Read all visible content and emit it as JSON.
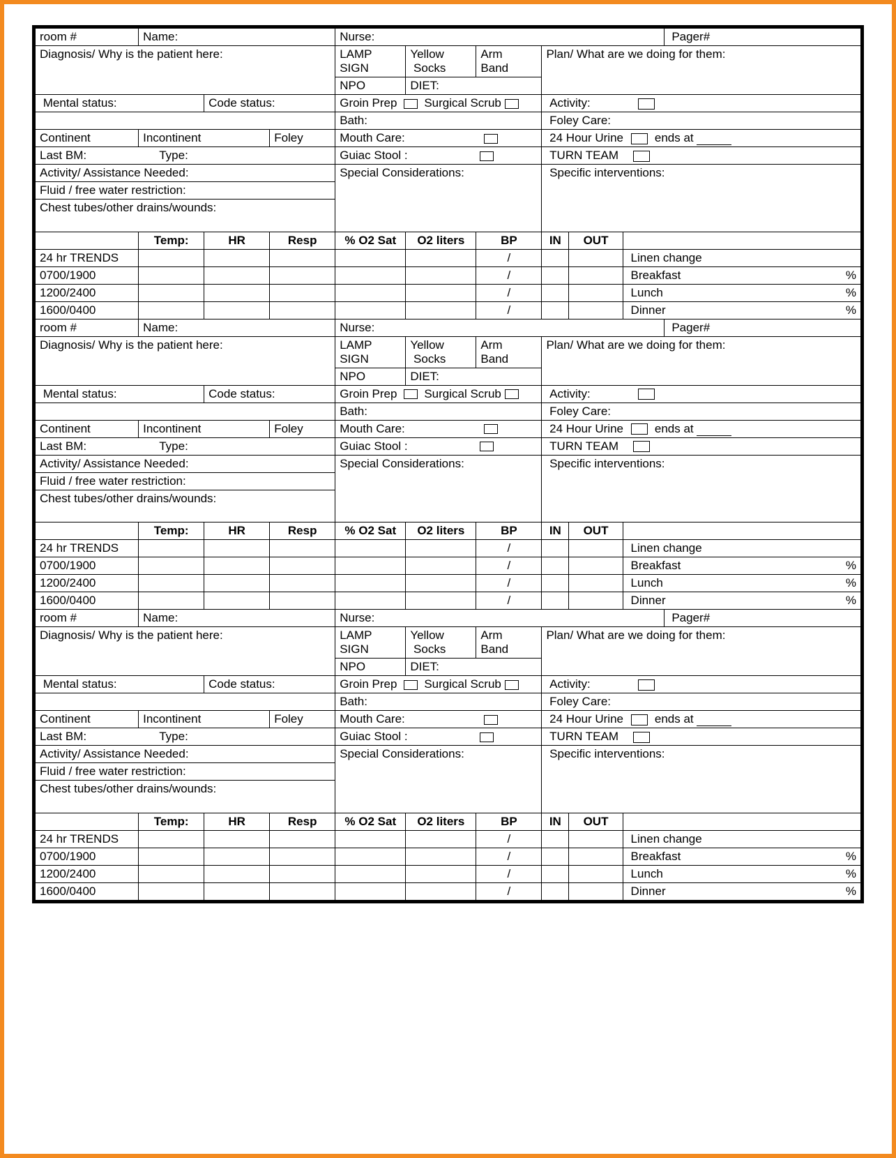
{
  "labels": {
    "room": "room #",
    "name": "Name:",
    "nurse": "Nurse:",
    "pager": "Pager#",
    "diagnosis": "Diagnosis/ Why is the patient here:",
    "lamp": "LAMP",
    "sign": "SIGN",
    "yellow": "Yellow",
    "socks": "Socks",
    "arm": "Arm",
    "band": "Band",
    "plan": "Plan/ What are we doing for them:",
    "npo": "NPO",
    "diet": "DIET:",
    "mental": "Mental status:",
    "code": "Code status:",
    "groin": "Groin Prep",
    "scrub": "Surgical Scrub",
    "activity": "Activity:",
    "bath": "Bath:",
    "foleycare": "Foley Care:",
    "continent": "Continent",
    "incontinent": "Incontinent",
    "foley": "Foley",
    "mouth": "Mouth Care:",
    "urine": "24 Hour Urine",
    "ends": "ends at",
    "lastbm": "Last BM:",
    "type": "Type:",
    "guiac": "Guiac Stool  :",
    "turn": "TURN TEAM",
    "assist": "Activity/ Assistance Needed:",
    "special": "Special Considerations:",
    "interventions": "Specific interventions:",
    "fluid": "Fluid / free water restriction:",
    "chest": "Chest tubes/other drains/wounds:",
    "temp": "Temp:",
    "hr": "HR",
    "resp": "Resp",
    "o2sat": "% O2 Sat",
    "o2liters": "O2 liters",
    "bp": "BP",
    "in": "IN",
    "out": "OUT",
    "trends": "24 hr TRENDS",
    "t0700": "0700/1900",
    "t1200": "1200/2400",
    "t1600": "1600/0400",
    "slash": "/",
    "linen": "Linen change",
    "breakfast": "Breakfast",
    "lunch": "Lunch",
    "dinner": "Dinner",
    "pct": "%"
  },
  "sections": 3,
  "colors": {
    "border_outer": "#f38a1f",
    "border_inner": "#000000",
    "background": "#ffffff",
    "text": "#000000"
  },
  "typography": {
    "font_family": "Arial",
    "font_size_pt": 12
  }
}
